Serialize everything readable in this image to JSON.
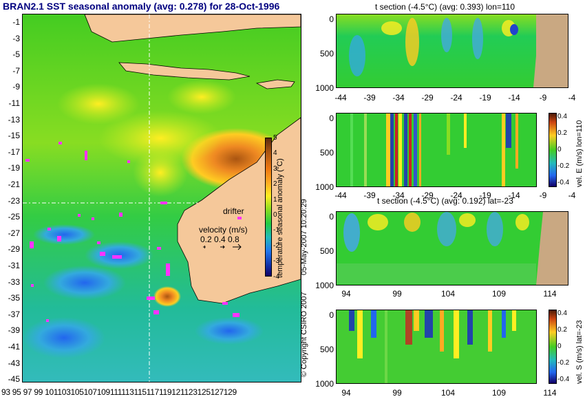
{
  "map": {
    "title": "BRAN2.1 SST seasonal anomaly (avg: 0.278) for 28-Oct-1996",
    "lat_ticks": [
      "-1",
      "-3",
      "-5",
      "-7",
      "-9",
      "-11",
      "-13",
      "-15",
      "-17",
      "-19",
      "-21",
      "-23",
      "-25",
      "-27",
      "-29",
      "-31",
      "-33",
      "-35",
      "-37",
      "-39",
      "-41",
      "-43",
      "-45"
    ],
    "lon_ticks": [
      "93",
      "95",
      "97",
      "99",
      "101",
      "103",
      "105",
      "107",
      "109",
      "111",
      "113",
      "115",
      "117",
      "119",
      "121",
      "123",
      "125",
      "127",
      "129"
    ],
    "lon_ticks_label_text": "93 95 97 99 101103105107109111113115117119121123125127129",
    "colorbar": {
      "label": "temperature seasonal anomaly (°C)",
      "ticks": [
        "5",
        "4",
        "3",
        "2",
        "1",
        "0",
        "-1",
        "-2",
        "-3",
        "-4"
      ]
    },
    "legend": {
      "drifter_label": "drifter",
      "velocity_label": "velocity (m/s)",
      "velocity_values": "0.2 0.4 0.8"
    },
    "guide_lon": "110",
    "guide_lat": "-23"
  },
  "panels": {
    "t_lon": {
      "title": "t section (-4.5°C) (avg: 0.393) lon=110",
      "y_ticks": [
        "0",
        "500",
        "1000"
      ],
      "x_ticks": [
        "-44",
        "-39",
        "-34",
        "-29",
        "-24",
        "-19",
        "-14",
        "-9",
        "-4"
      ]
    },
    "vel_e": {
      "y_ticks": [
        "0",
        "500",
        "1000"
      ],
      "x_ticks": [
        "-44",
        "-39",
        "-34",
        "-29",
        "-24",
        "-19",
        "-14",
        "-9",
        "-4"
      ],
      "colorbar_label": "vel. E (m/s) lon=110",
      "colorbar_ticks": [
        "0.4",
        "0.2",
        "0",
        "-0.2",
        "-0.4"
      ]
    },
    "t_lat": {
      "title": "t section (-4.5°C) (avg: 0.192) lat=-23",
      "y_ticks": [
        "0",
        "500",
        "1000"
      ],
      "x_ticks": [
        "94",
        "99",
        "104",
        "109",
        "114"
      ]
    },
    "vel_s": {
      "y_ticks": [
        "0",
        "500",
        "1000"
      ],
      "x_ticks": [
        "94",
        "99",
        "104",
        "109",
        "114"
      ],
      "colorbar_label": "vel. S (m/s) lat=-23",
      "colorbar_ticks": [
        "0.4",
        "0.2",
        "0",
        "-0.2",
        "-0.4"
      ]
    }
  },
  "footer": {
    "copyright": "© Copyright CSIRO 2007",
    "timestamp": "05-May-2007 10:20:29"
  },
  "colors": {
    "land": "#f5c89a",
    "land_section": "#c9a882",
    "ocean_green": "#33cc33",
    "drifter": "#ff33ff"
  }
}
